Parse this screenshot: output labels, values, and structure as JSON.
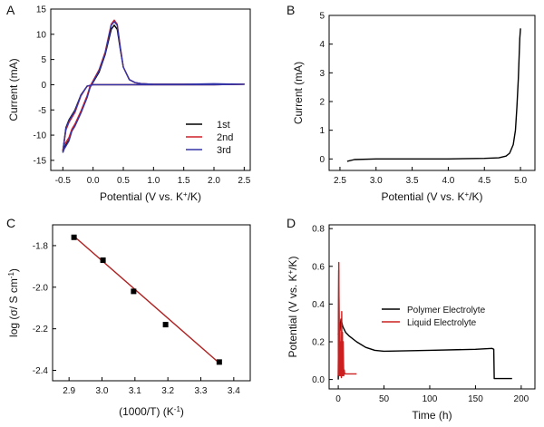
{
  "chart_data": [
    {
      "panel": "A",
      "type": "line",
      "xlabel": "Potential (V vs. K",
      "xlabel_sup": "+",
      "xlabel_tail": "/K)",
      "ylabel": "Current (mA)",
      "xlim": [
        -0.7,
        2.6
      ],
      "ylim": [
        -17,
        15
      ],
      "xticks": [
        -0.5,
        0.0,
        0.5,
        1.0,
        1.5,
        2.0,
        2.5
      ],
      "xtick_labels": [
        "-0.5",
        "0.0",
        "0.5",
        "1.0",
        "1.5",
        "2.0",
        "2.5"
      ],
      "yticks": [
        -15,
        -10,
        -5,
        0,
        5,
        10,
        15
      ],
      "ytick_labels": [
        "-15",
        "-10",
        "-5",
        "0",
        "5",
        "10",
        "15"
      ],
      "legend_position": "bottom-right",
      "series": [
        {
          "name": "1st",
          "color": "#000000",
          "x": [
            -0.5,
            -0.48,
            -0.4,
            -0.35,
            -0.3,
            -0.2,
            -0.1,
            -0.05,
            0.0,
            0.1,
            0.2,
            0.3,
            0.35,
            0.4,
            0.45,
            0.5,
            0.6,
            0.7,
            0.8,
            1.0,
            1.5,
            2.0,
            2.5,
            2.0,
            1.0,
            0.5,
            0.2,
            0.1,
            0.0,
            -0.1,
            -0.2,
            -0.3,
            -0.4,
            -0.45,
            -0.5
          ],
          "y": [
            -13.2,
            -12.5,
            -11.0,
            -9.0,
            -8.0,
            -5.5,
            -2.5,
            -0.5,
            0.5,
            2.5,
            6.0,
            11.0,
            11.8,
            11.0,
            7.0,
            3.5,
            1.0,
            0.4,
            0.2,
            0.1,
            0.1,
            0.1,
            0.1,
            0.0,
            0.0,
            0.0,
            0.0,
            0.0,
            0.0,
            -0.3,
            -2.0,
            -5.0,
            -7.0,
            -8.5,
            -13.2
          ]
        },
        {
          "name": "2nd",
          "color": "#d0202a",
          "x": [
            -0.5,
            -0.48,
            -0.4,
            -0.35,
            -0.3,
            -0.2,
            -0.1,
            -0.05,
            0.0,
            0.1,
            0.2,
            0.3,
            0.35,
            0.4,
            0.45,
            0.5,
            0.6,
            0.7,
            0.8,
            1.0,
            1.5,
            2.0,
            2.5,
            2.0,
            1.0,
            0.5,
            0.2,
            0.1,
            0.0,
            -0.1,
            -0.2,
            -0.3,
            -0.4,
            -0.45,
            -0.5
          ],
          "y": [
            -13.0,
            -12.0,
            -10.5,
            -8.8,
            -7.8,
            -5.2,
            -2.2,
            -0.3,
            0.8,
            3.0,
            6.5,
            12.0,
            12.8,
            12.0,
            7.5,
            3.5,
            1.0,
            0.4,
            0.2,
            0.1,
            0.1,
            0.1,
            0.1,
            0.0,
            0.0,
            0.0,
            0.0,
            0.0,
            0.0,
            -0.3,
            -2.2,
            -5.5,
            -7.5,
            -9.0,
            -13.0
          ]
        },
        {
          "name": "3rd",
          "color": "#3535a8",
          "x": [
            -0.5,
            -0.48,
            -0.4,
            -0.35,
            -0.3,
            -0.2,
            -0.1,
            -0.05,
            0.0,
            0.1,
            0.2,
            0.3,
            0.35,
            0.4,
            0.45,
            0.5,
            0.6,
            0.7,
            0.8,
            1.0,
            1.5,
            2.0,
            2.5,
            2.0,
            1.0,
            0.5,
            0.2,
            0.1,
            0.0,
            -0.1,
            -0.2,
            -0.3,
            -0.4,
            -0.45,
            -0.5
          ],
          "y": [
            -13.5,
            -12.8,
            -11.2,
            -9.2,
            -8.2,
            -5.6,
            -2.6,
            -0.6,
            0.6,
            2.8,
            6.2,
            11.8,
            12.5,
            11.8,
            7.2,
            3.5,
            1.0,
            0.4,
            0.2,
            0.1,
            0.1,
            0.2,
            0.1,
            0.0,
            0.0,
            0.0,
            0.0,
            0.0,
            0.0,
            -0.3,
            -2.1,
            -5.2,
            -7.2,
            -8.7,
            -13.5
          ]
        }
      ]
    },
    {
      "panel": "B",
      "type": "line",
      "xlabel": "Potential (V vs. K",
      "xlabel_sup": "+",
      "xlabel_tail": "/K)",
      "ylabel": "Current (mA)",
      "xlim": [
        2.35,
        5.2
      ],
      "ylim": [
        -0.4,
        5.0
      ],
      "xticks": [
        2.5,
        3.0,
        3.5,
        4.0,
        4.5,
        5.0
      ],
      "xtick_labels": [
        "2.5",
        "3.0",
        "3.5",
        "4.0",
        "4.5",
        "5.0"
      ],
      "yticks": [
        0,
        1,
        2,
        3,
        4,
        5
      ],
      "ytick_labels": [
        "0",
        "1",
        "2",
        "3",
        "4",
        "5"
      ],
      "series": [
        {
          "color": "#000000",
          "x": [
            2.6,
            2.7,
            3.0,
            3.5,
            4.0,
            4.5,
            4.7,
            4.8,
            4.85,
            4.9,
            4.93,
            4.95,
            4.97,
            4.98,
            4.99,
            5.0
          ],
          "y": [
            -0.08,
            -0.02,
            0.0,
            0.0,
            0.0,
            0.02,
            0.04,
            0.1,
            0.2,
            0.5,
            1.0,
            1.8,
            2.8,
            3.5,
            4.2,
            4.55
          ]
        }
      ]
    },
    {
      "panel": "C",
      "type": "scatter",
      "xlabel": "(1000/T) (K",
      "xlabel_sup": "-1",
      "xlabel_tail": ")",
      "ylabel": "log (σ/ S cm",
      "ylabel_sup": "-1",
      "ylabel_tail": ")",
      "xlim": [
        2.85,
        3.45
      ],
      "ylim": [
        -2.45,
        -1.7
      ],
      "xticks": [
        2.9,
        3.0,
        3.1,
        3.2,
        3.3,
        3.4
      ],
      "xtick_labels": [
        "2.9",
        "3.0",
        "3.1",
        "3.2",
        "3.3",
        "3.4"
      ],
      "yticks": [
        -2.4,
        -2.2,
        -2.0,
        -1.8
      ],
      "ytick_labels": [
        "-2.4",
        "-2.2",
        "-2.0",
        "-1.8"
      ],
      "points": {
        "color": "#000000",
        "x": [
          2.915,
          3.003,
          3.096,
          3.193,
          3.356
        ],
        "y": [
          -1.76,
          -1.87,
          -2.02,
          -2.18,
          -2.36
        ]
      },
      "fit": {
        "color": "#b02020",
        "x": [
          2.915,
          3.356
        ],
        "y": [
          -1.755,
          -2.365
        ]
      }
    },
    {
      "panel": "D",
      "type": "line",
      "xlabel": "Time (h)",
      "ylabel": "Potential (V vs. K",
      "ylabel_sup": "+",
      "ylabel_tail": "/K)",
      "xlim": [
        -10,
        215
      ],
      "ylim": [
        -0.05,
        0.82
      ],
      "xticks": [
        0,
        50,
        100,
        150,
        200
      ],
      "xtick_labels": [
        "0",
        "50",
        "100",
        "150",
        "200"
      ],
      "yticks": [
        0.0,
        0.2,
        0.4,
        0.6,
        0.8
      ],
      "ytick_labels": [
        "0.0",
        "0.2",
        "0.4",
        "0.6",
        "0.8"
      ],
      "legend_position": "center-right",
      "series": [
        {
          "name": "Polymer Electrolyte",
          "color": "#000000",
          "x": [
            0,
            2,
            3,
            5,
            8,
            12,
            20,
            30,
            40,
            50,
            100,
            150,
            168,
            170,
            170.5,
            175,
            190
          ],
          "y": [
            0.24,
            0.26,
            0.32,
            0.28,
            0.25,
            0.23,
            0.2,
            0.17,
            0.155,
            0.15,
            0.155,
            0.16,
            0.165,
            0.16,
            0.005,
            0.005,
            0.005
          ],
          "pre_spike": {
            "x": [
              0,
              0.5,
              1
            ],
            "y": [
              0.0,
              0.58,
              0.25
            ]
          }
        },
        {
          "name": "Liquid Electrolyte",
          "color": "#cc2020",
          "x": [
            0,
            0.6,
            1.2,
            1.8,
            2.4,
            3.0,
            3.4,
            3.8,
            4.2,
            4.6,
            5.0,
            5.4,
            6.0,
            6.6,
            7.0,
            7.5,
            20
          ],
          "y": [
            0.02,
            0.62,
            0.02,
            0.3,
            0.02,
            0.2,
            0.01,
            0.36,
            0.02,
            0.25,
            0.02,
            0.2,
            0.02,
            0.05,
            0.03,
            0.03,
            0.03
          ]
        }
      ]
    }
  ]
}
